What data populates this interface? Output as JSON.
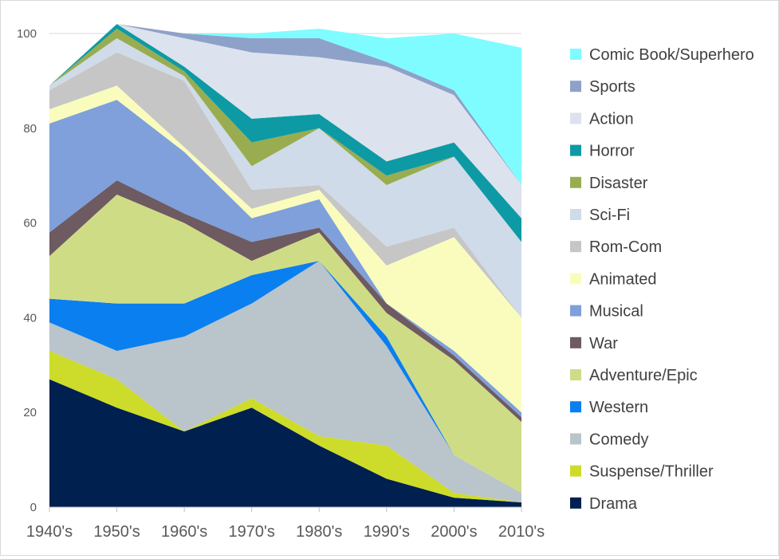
{
  "chart_data": {
    "type": "area",
    "stacked": true,
    "title": "",
    "xlabel": "",
    "ylabel": "",
    "ylim": [
      0,
      100
    ],
    "yticks": [
      0,
      20,
      40,
      60,
      80,
      100
    ],
    "grid": "horizontal",
    "legend_position": "right",
    "categories": [
      "1940's",
      "1950's",
      "1960's",
      "1970's",
      "1980's",
      "1990's",
      "2000's",
      "2010's"
    ],
    "series": [
      {
        "name": "Drama",
        "color": "#002050",
        "values": [
          27,
          21,
          16,
          21,
          13,
          6,
          2,
          1
        ]
      },
      {
        "name": "Suspense/Thriller",
        "color": "#cddc2a",
        "values": [
          6,
          6,
          0,
          2,
          2,
          7,
          1,
          0
        ]
      },
      {
        "name": "Comedy",
        "color": "#b9c4cb",
        "values": [
          6,
          6,
          20,
          20,
          37,
          21,
          8,
          2
        ]
      },
      {
        "name": "Western",
        "color": "#0a7fef",
        "values": [
          5,
          10,
          7,
          6,
          0,
          2,
          0,
          0
        ]
      },
      {
        "name": "Adventure/Epic",
        "color": "#cfdc86",
        "values": [
          9,
          23,
          17,
          3,
          6,
          5,
          20,
          15
        ]
      },
      {
        "name": "War",
        "color": "#6e5a61",
        "values": [
          5,
          3,
          2,
          4,
          1,
          2,
          1,
          1
        ]
      },
      {
        "name": "Musical",
        "color": "#7fa0da",
        "values": [
          23,
          17,
          13,
          5,
          6,
          0,
          1,
          1
        ]
      },
      {
        "name": "Animated",
        "color": "#fafcbe",
        "values": [
          3,
          3,
          1,
          2,
          2,
          8,
          24,
          20
        ]
      },
      {
        "name": "Rom-Com",
        "color": "#c6c6c6",
        "values": [
          4,
          7,
          14,
          4,
          1,
          4,
          2,
          0
        ]
      },
      {
        "name": "Sci-Fi",
        "color": "#cfdbe9",
        "values": [
          1,
          3,
          1,
          5,
          12,
          13,
          15,
          16
        ]
      },
      {
        "name": "Disaster",
        "color": "#99ad50",
        "values": [
          0,
          2,
          1,
          5,
          0,
          2,
          0,
          0
        ]
      },
      {
        "name": "Horror",
        "color": "#0e9aa5",
        "values": [
          0,
          1,
          1,
          5,
          3,
          3,
          3,
          5
        ]
      },
      {
        "name": "Action",
        "color": "#dce3ee",
        "values": [
          0,
          0,
          6,
          14,
          12,
          20,
          10,
          7
        ]
      },
      {
        "name": "Sports",
        "color": "#8ea1c8",
        "values": [
          0,
          0,
          1,
          3,
          4,
          1,
          1,
          0
        ]
      },
      {
        "name": "Comic Book/Superhero",
        "color": "#7ffcff",
        "values": [
          0,
          0,
          0,
          1,
          2,
          5,
          12,
          29
        ]
      }
    ]
  }
}
